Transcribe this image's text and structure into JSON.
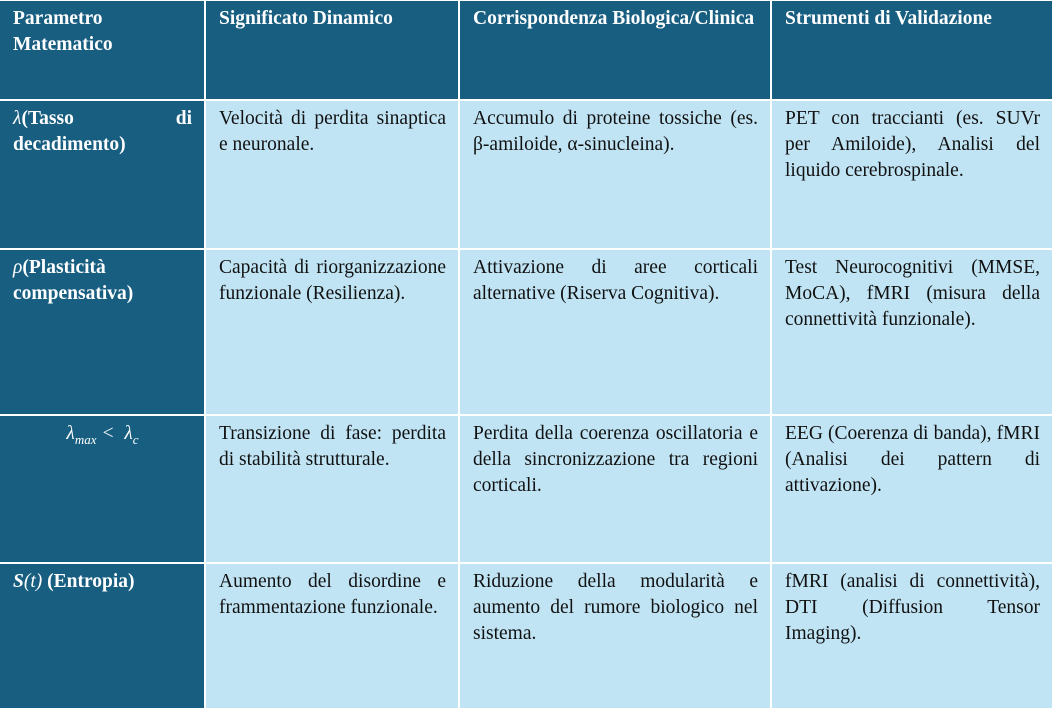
{
  "colors": {
    "header_bg": "#175e80",
    "cell_bg": "#c0e4f4"
  },
  "headers": [
    "Parametro Matematico",
    "Significato Dinamico",
    "Corrispondenza Biologica/Clinica",
    "Strumenti di Validazione"
  ],
  "rows": [
    {
      "symbol": "λ",
      "param": "(Tasso di decadimento)",
      "dynamic": "Velocità di perdita sinaptica e neuronale.",
      "biological": "Accumulo di proteine tossiche (es. β-amiloide, α-sinucleina).",
      "tools": "PET con traccianti (es. SUVr per Amiloide), Analisi del liquido cerebrospinale."
    },
    {
      "symbol": "ρ",
      "param": "(Plasticità compensativa)",
      "dynamic": "Capacità di riorganizzazione funzionale (Resilienza).",
      "biological": "Attivazione di aree corticali alternative (Riserva Cognitiva).",
      "tools": "Test Neurocognitivi (MMSE, MoCA), fMRI (misura della connettività funzionale)."
    },
    {
      "symbol": "λ",
      "sub1": "max",
      "op": " <  λ",
      "sub2": "c",
      "dynamic": "Transizione di fase: perdita di stabilità strutturale.",
      "biological": "Perdita della coerenza oscillatoria e della sincronizzazione tra regioni corticali.",
      "tools": "EEG (Coerenza di banda), fMRI (Analisi dei pattern di attivazione)."
    },
    {
      "symbol": "S",
      "arg": "(t)",
      "param": " (Entropia)",
      "dynamic": "Aumento del disordine e frammentazione funzionale.",
      "biological": "Riduzione della modularità e aumento del rumore biologico nel sistema.",
      "tools": "fMRI (analisi di connettività), DTI (Diffusion Tensor Imaging)."
    }
  ]
}
